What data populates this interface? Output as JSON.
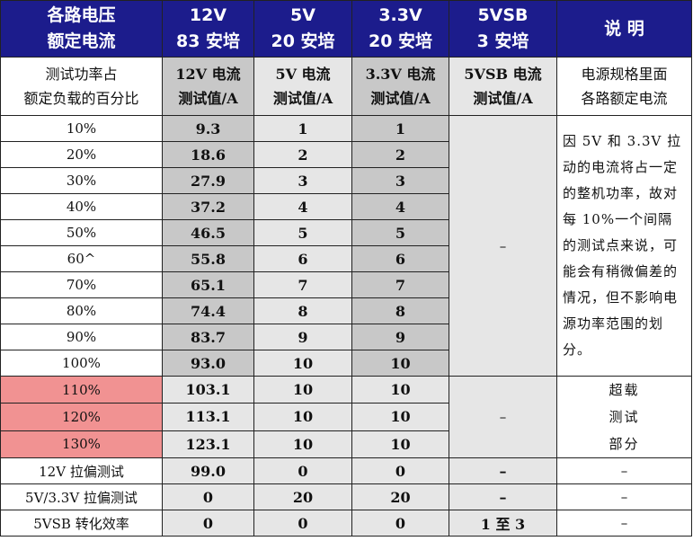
{
  "header": [
    [
      "各路电压",
      "额定电流"
    ],
    [
      "12V",
      "83 安培"
    ],
    [
      "5V",
      "20 安培"
    ],
    [
      "3.3V",
      "20 安培"
    ],
    [
      "5VSB",
      "3 安培"
    ],
    [
      "说 明"
    ]
  ],
  "subheader": [
    [
      "测试功率占",
      "额定负载的百分比"
    ],
    [
      "12V 电流",
      "测试值/A"
    ],
    [
      "5V 电流",
      "测试值/A"
    ],
    [
      "3.3V 电流",
      "测试值/A"
    ],
    [
      "5VSB 电流",
      "测试值/A"
    ],
    [
      "电源规格里面",
      "各路额定电流"
    ]
  ],
  "normal_rows": [
    [
      "10%",
      "9.3",
      "1",
      "1"
    ],
    [
      "20%",
      "18.6",
      "2",
      "2"
    ],
    [
      "30%",
      "27.9",
      "3",
      "3"
    ],
    [
      "40%",
      "37.2",
      "4",
      "4"
    ],
    [
      "50%",
      "46.5",
      "5",
      "5"
    ],
    [
      "60^",
      "55.8",
      "6",
      "6"
    ],
    [
      "70%",
      "65.1",
      "7",
      "7"
    ],
    [
      "80%",
      "74.4",
      "8",
      "8"
    ],
    [
      "90%",
      "83.7",
      "9",
      "9"
    ],
    [
      "100%",
      "93.0",
      "10",
      "10"
    ]
  ],
  "normal_5vsb": "–",
  "normal_note": "因 5V 和 3.3V 拉动的电流将占一定的整机功率，故对每 10%一个间隔的测试点来说，可能会有稍微偏差的情况，但不影响电源功率范围的划分。",
  "over_rows": [
    [
      "110%",
      "103.1",
      "10",
      "10"
    ],
    [
      "120%",
      "113.1",
      "10",
      "10"
    ],
    [
      "130%",
      "123.1",
      "10",
      "10"
    ]
  ],
  "over_5vsb": "–",
  "over_note": [
    "超载",
    "测试",
    "部分"
  ],
  "extra_rows": [
    [
      "12V 拉偏测试",
      "99.0",
      "0",
      "0",
      "–",
      "–"
    ],
    [
      "5V/3.3V 拉偏测试",
      "0",
      "20",
      "20",
      "–",
      "–"
    ],
    [
      "5VSB 转化效率",
      "0",
      "0",
      "0",
      "1 至 3",
      "–"
    ]
  ]
}
